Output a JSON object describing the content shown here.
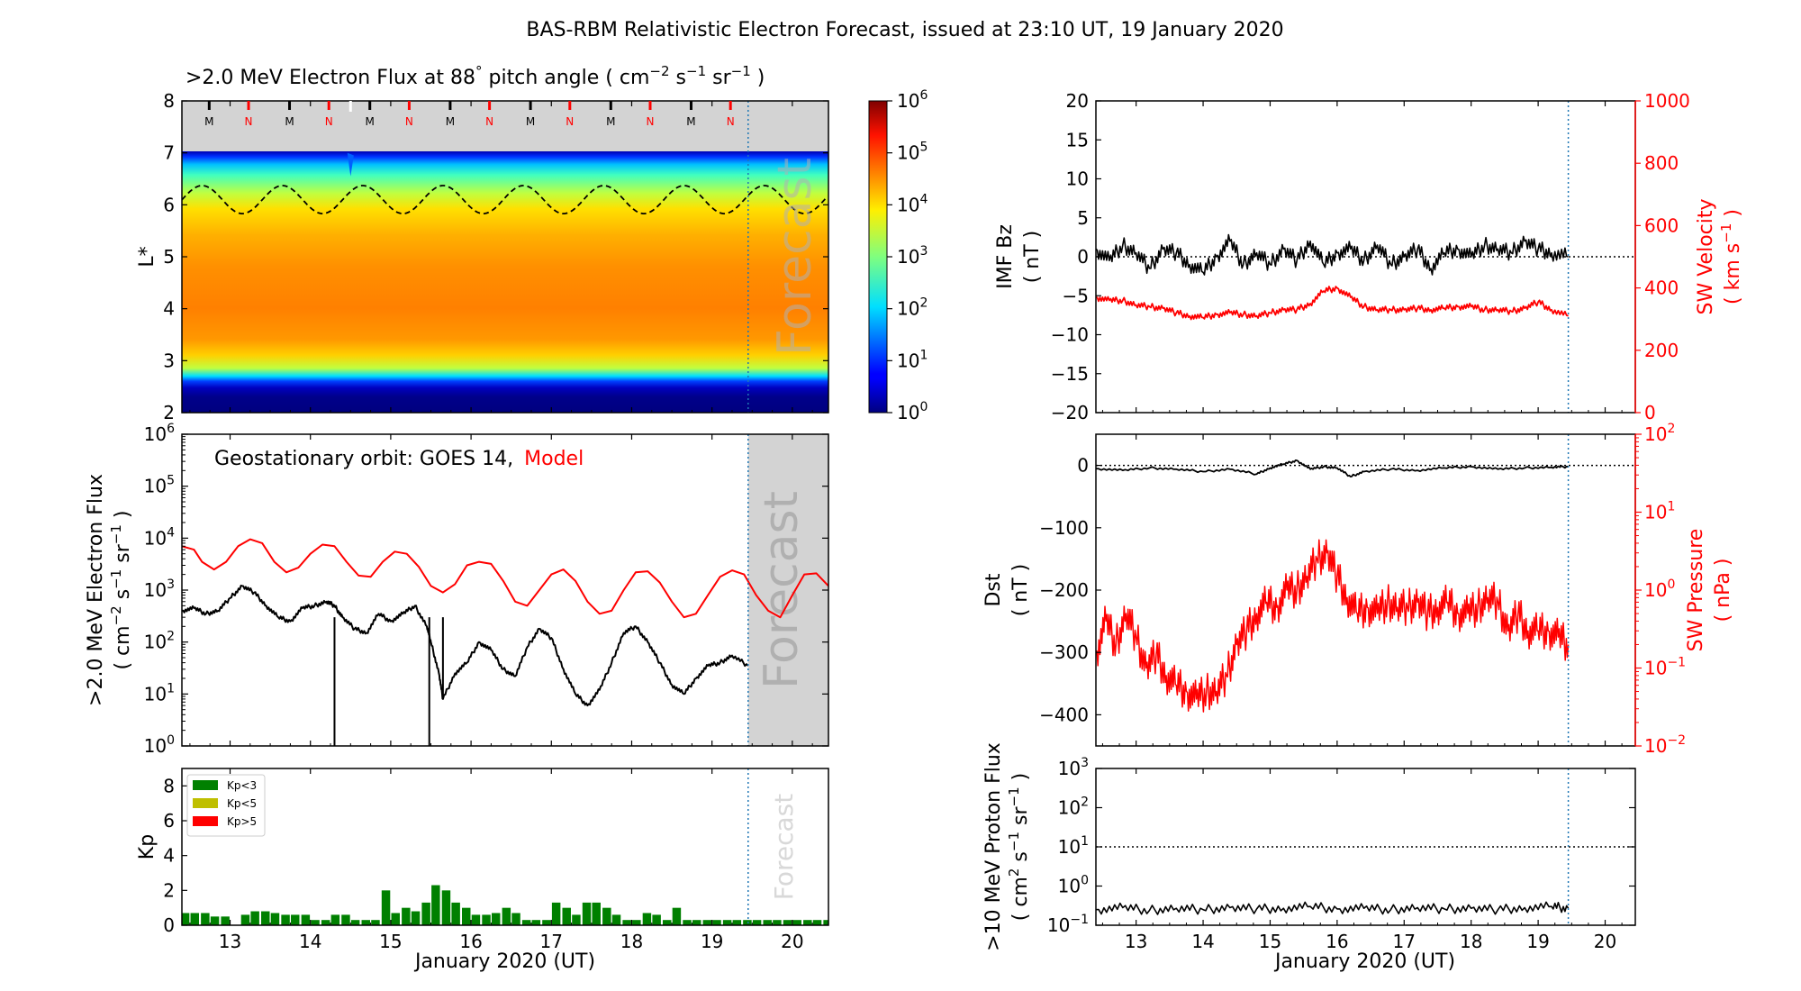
{
  "figure": {
    "title": "BAS-RBM Relativistic Electron Forecast, issued at 23:10 UT, 19 January 2020",
    "forecast_label": "Forecast",
    "xaxis_label": "January 2020 (UT)",
    "xticks": [
      "13",
      "14",
      "15",
      "16",
      "17",
      "18",
      "19",
      "20"
    ],
    "x_range": [
      12.4,
      20.45
    ],
    "forecast_start": 19.45
  },
  "colors": {
    "observed": "#000000",
    "model": "#ff0000",
    "kp_low": "#008000",
    "kp_mid": "#bfbf00",
    "kp_high": "#ff0000",
    "forecast_shade": "#d3d3d3",
    "forecast_line": "#1f77b4"
  },
  "chart_data": [
    {
      "id": "lstar_flux",
      "type": "heatmap",
      "title_parts": [
        ">2.0 MeV Electron Flux at 88",
        "°",
        " pitch angle ( cm",
        "−2",
        " s",
        "−1",
        " sr",
        "−1",
        " )"
      ],
      "ylabel": "L*",
      "ylim": [
        2,
        8
      ],
      "yticks": [
        "2",
        "3",
        "4",
        "5",
        "6",
        "7",
        "8"
      ],
      "colorbar": {
        "min_exp": 0,
        "max_exp": 6,
        "ticks": [
          "10",
          "10",
          "10",
          "10",
          "10",
          "10",
          "10"
        ],
        "tick_exps": [
          "0",
          "1",
          "2",
          "3",
          "4",
          "5",
          "6"
        ],
        "colormap": "jet"
      },
      "orbit_markers": {
        "labels": [
          "M",
          "N",
          "M",
          "N",
          "M",
          "N",
          "M",
          "N",
          "M",
          "N",
          "M",
          "N",
          "M",
          "N"
        ],
        "x": [
          12.74,
          13.23,
          13.74,
          14.23,
          14.74,
          15.23,
          15.74,
          16.23,
          16.74,
          17.23,
          17.74,
          18.23,
          18.74,
          19.23
        ],
        "colors": [
          "#000000",
          "#ff0000",
          "#000000",
          "#ff0000",
          "#000000",
          "#ff0000",
          "#000000",
          "#ff0000",
          "#000000",
          "#ff0000",
          "#000000",
          "#ff0000",
          "#000000",
          "#ff0000"
        ]
      },
      "dashed_contour": {
        "mean_L": 6.1,
        "amplitude": 0.27,
        "period_days": 1.0
      }
    },
    {
      "id": "geo_flux",
      "type": "line",
      "annotation": "Geostationary orbit:   GOES 14,",
      "annotation_model": "Model",
      "ylabel": ">2.0 MeV Electron Flux",
      "ylabel2_parts": [
        "( cm",
        "−2",
        " s",
        "−1",
        " sr",
        "−1",
        " )"
      ],
      "yscale": "log",
      "ylim_exp": [
        0,
        6
      ],
      "ytick_exps": [
        "0",
        "1",
        "2",
        "3",
        "4",
        "5",
        "6"
      ],
      "ytick_base": "10",
      "series": [
        {
          "name": "Model",
          "x": [
            12.4,
            12.55,
            12.65,
            12.8,
            12.95,
            13.1,
            13.25,
            13.4,
            13.55,
            13.7,
            13.85,
            14.0,
            14.15,
            14.3,
            14.45,
            14.6,
            14.75,
            14.9,
            15.05,
            15.2,
            15.35,
            15.5,
            15.65,
            15.8,
            15.95,
            16.1,
            16.25,
            16.4,
            16.55,
            16.7,
            16.85,
            17.0,
            17.15,
            17.3,
            17.45,
            17.6,
            17.75,
            17.9,
            18.05,
            18.2,
            18.35,
            18.5,
            18.65,
            18.8,
            18.95,
            19.1,
            19.25,
            19.4,
            19.55,
            19.7,
            19.85,
            20.0,
            20.15,
            20.3,
            20.45
          ],
          "values": [
            7000,
            6000,
            3500,
            2500,
            3500,
            7000,
            9500,
            8000,
            3500,
            2200,
            2700,
            5000,
            7500,
            7000,
            3500,
            1900,
            1800,
            3500,
            5500,
            5000,
            2800,
            1200,
            900,
            1300,
            3000,
            3500,
            3200,
            1500,
            600,
            500,
            1000,
            2000,
            2500,
            1500,
            600,
            350,
            400,
            1000,
            2200,
            2300,
            1400,
            600,
            300,
            350,
            800,
            1800,
            2400,
            2000,
            800,
            400,
            300,
            800,
            2000,
            2100,
            1200
          ]
        },
        {
          "name": "GOES 14",
          "x": [
            12.4,
            12.55,
            12.7,
            12.85,
            13.0,
            13.15,
            13.3,
            13.45,
            13.6,
            13.75,
            13.9,
            14.05,
            14.2,
            14.3,
            14.4,
            14.55,
            14.7,
            14.85,
            15.0,
            15.15,
            15.3,
            15.45,
            15.5,
            15.6,
            15.65,
            15.8,
            15.95,
            16.1,
            16.25,
            16.4,
            16.55,
            16.7,
            16.85,
            17.0,
            17.15,
            17.3,
            17.45,
            17.6,
            17.75,
            17.9,
            18.05,
            18.2,
            18.35,
            18.5,
            18.65,
            18.8,
            18.95,
            19.1,
            19.25,
            19.45
          ],
          "values": [
            400,
            450,
            350,
            400,
            700,
            1200,
            900,
            500,
            300,
            250,
            450,
            500,
            600,
            500,
            300,
            180,
            150,
            350,
            250,
            350,
            500,
            200,
            100,
            25,
            8,
            25,
            40,
            100,
            70,
            30,
            22,
            80,
            180,
            120,
            30,
            10,
            6,
            12,
            40,
            150,
            200,
            100,
            40,
            15,
            10,
            20,
            35,
            40,
            55,
            35
          ]
        }
      ],
      "dips": {
        "x": [
          14.3,
          15.48,
          15.65
        ],
        "values": [
          1,
          1,
          8
        ]
      }
    },
    {
      "id": "kp",
      "type": "bar",
      "ylabel": "Kp",
      "ylim": [
        0,
        9
      ],
      "yticks": [
        "0",
        "2",
        "4",
        "6",
        "8"
      ],
      "legend": [
        "Kp<3",
        "Kp<5",
        "Kp>5"
      ],
      "legend_position": "top-left",
      "x": [
        12.44,
        12.56,
        12.69,
        12.81,
        12.94,
        13.19,
        13.31,
        13.44,
        13.56,
        13.69,
        13.81,
        13.94,
        14.06,
        14.19,
        14.31,
        14.44,
        14.56,
        14.69,
        14.81,
        14.94,
        15.06,
        15.19,
        15.31,
        15.44,
        15.56,
        15.69,
        15.81,
        15.94,
        16.06,
        16.19,
        16.31,
        16.44,
        16.56,
        16.69,
        16.81,
        16.94,
        17.06,
        17.19,
        17.31,
        17.44,
        17.56,
        17.69,
        17.81,
        17.94,
        18.06,
        18.19,
        18.31,
        18.44,
        18.56,
        18.69,
        18.81,
        18.94,
        19.06,
        19.19,
        19.31,
        19.44,
        19.56,
        19.69,
        19.81,
        19.94,
        20.06,
        20.19,
        20.31,
        20.44
      ],
      "values": [
        0.7,
        0.7,
        0.7,
        0.5,
        0.5,
        0.6,
        0.8,
        0.8,
        0.7,
        0.6,
        0.6,
        0.6,
        0.3,
        0.3,
        0.6,
        0.6,
        0.3,
        0.3,
        0.3,
        2.0,
        0.7,
        1.0,
        0.8,
        1.3,
        2.3,
        2.0,
        1.3,
        1.0,
        0.6,
        0.6,
        0.7,
        1.0,
        0.7,
        0.3,
        0.3,
        0.3,
        1.3,
        1.0,
        0.6,
        1.3,
        1.3,
        1.0,
        0.6,
        0.3,
        0.3,
        0.7,
        0.6,
        0.3,
        1.0,
        0.3,
        0.3,
        0.3,
        0.3,
        0.3,
        0.3,
        0.3,
        0.3,
        0.3,
        0.3,
        0.3,
        0.3,
        0.3,
        0.3,
        0.3
      ]
    },
    {
      "id": "imf_sw",
      "type": "line",
      "ylabel": "IMF Bz",
      "ylabel_unit": "( nT )",
      "ylim": [
        -20,
        20
      ],
      "yticks": [
        "−20",
        "−15",
        "−10",
        "−5",
        "0",
        "5",
        "10",
        "15",
        "20"
      ],
      "ylabel_right": "SW Velocity",
      "ylabel_right_parts": [
        "( km s",
        "−1",
        " )"
      ],
      "ylim_right": [
        0,
        1000
      ],
      "yticks_right": [
        "0",
        "200",
        "400",
        "600",
        "800",
        "1000"
      ],
      "series": [
        {
          "name": "IMF Bz",
          "x": [
            12.4,
            12.6,
            12.8,
            13.0,
            13.2,
            13.4,
            13.6,
            13.8,
            14.0,
            14.2,
            14.4,
            14.6,
            14.8,
            15.0,
            15.2,
            15.4,
            15.6,
            15.8,
            16.0,
            16.2,
            16.4,
            16.6,
            16.8,
            17.0,
            17.2,
            17.4,
            17.6,
            17.8,
            18.0,
            18.2,
            18.4,
            18.6,
            18.8,
            19.0,
            19.2,
            19.45
          ],
          "values": [
            1.0,
            -0.5,
            1.5,
            0.5,
            -1.5,
            1.0,
            0.5,
            -1.0,
            -2.0,
            0.0,
            2.0,
            -1.0,
            0.5,
            -1.0,
            1.0,
            -0.5,
            2.0,
            -1.0,
            0.5,
            1.0,
            -0.5,
            1.5,
            -1.0,
            0.0,
            1.0,
            -1.5,
            0.5,
            1.0,
            0.0,
            1.5,
            1.0,
            0.5,
            2.0,
            1.0,
            0.5,
            0.0
          ]
        },
        {
          "name": "SW Velocity",
          "x": [
            12.4,
            12.6,
            12.8,
            13.0,
            13.2,
            13.4,
            13.6,
            13.8,
            14.0,
            14.2,
            14.4,
            14.6,
            14.8,
            15.0,
            15.2,
            15.4,
            15.6,
            15.8,
            16.0,
            16.2,
            16.4,
            16.6,
            16.8,
            17.0,
            17.2,
            17.4,
            17.6,
            17.8,
            18.0,
            18.2,
            18.4,
            18.6,
            18.8,
            19.0,
            19.2,
            19.45
          ],
          "values": [
            370,
            360,
            360,
            345,
            340,
            335,
            320,
            310,
            305,
            315,
            320,
            315,
            310,
            320,
            330,
            330,
            350,
            390,
            400,
            370,
            340,
            330,
            330,
            330,
            335,
            330,
            335,
            340,
            340,
            330,
            330,
            325,
            335,
            355,
            330,
            310
          ]
        }
      ],
      "zero_line": 0
    },
    {
      "id": "dst_pressure",
      "type": "line",
      "ylabel": "Dst",
      "ylabel_unit": "( nT )",
      "ylim": [
        -450,
        50
      ],
      "yticks": [
        "−400",
        "−300",
        "−200",
        "−100",
        "0"
      ],
      "ylabel_right": "SW Pressure",
      "ylabel_right_unit": "( nPa )",
      "yscale_right": "log",
      "ylim_right_exp": [
        -2,
        2
      ],
      "yticks_right_exp": [
        "−2",
        "−1",
        "0",
        "1",
        "2"
      ],
      "ytick_base": "10",
      "series": [
        {
          "name": "Dst",
          "x": [
            12.4,
            12.8,
            13.2,
            13.6,
            14.0,
            14.4,
            14.8,
            15.0,
            15.2,
            15.4,
            15.6,
            15.8,
            16.0,
            16.2,
            16.4,
            16.8,
            17.2,
            17.6,
            18.0,
            18.4,
            18.8,
            19.2,
            19.45
          ],
          "values": [
            -5,
            -8,
            -4,
            -6,
            -10,
            -6,
            -14,
            -4,
            2,
            8,
            -6,
            -2,
            -4,
            -18,
            -10,
            -6,
            -8,
            -4,
            -2,
            -6,
            -4,
            -3,
            -2
          ]
        },
        {
          "name": "SW Pressure",
          "x": [
            12.4,
            12.55,
            12.7,
            12.85,
            13.0,
            13.15,
            13.3,
            13.45,
            13.6,
            13.75,
            13.9,
            14.05,
            14.2,
            14.35,
            14.5,
            14.65,
            14.8,
            14.95,
            15.1,
            15.25,
            15.4,
            15.55,
            15.7,
            15.85,
            16.0,
            16.15,
            16.3,
            16.45,
            16.6,
            16.75,
            16.9,
            17.05,
            17.2,
            17.35,
            17.5,
            17.65,
            17.8,
            17.95,
            18.1,
            18.25,
            18.4,
            18.55,
            18.7,
            18.85,
            19.0,
            19.15,
            19.3,
            19.45
          ],
          "values": [
            0.15,
            0.4,
            0.2,
            0.5,
            0.25,
            0.1,
            0.15,
            0.08,
            0.06,
            0.05,
            0.04,
            0.05,
            0.05,
            0.08,
            0.2,
            0.3,
            0.5,
            0.7,
            0.6,
            1.0,
            1.0,
            1.5,
            2.5,
            3.0,
            1.5,
            0.8,
            0.5,
            0.6,
            0.5,
            0.7,
            0.6,
            0.6,
            0.7,
            0.5,
            0.6,
            0.7,
            0.5,
            0.5,
            0.6,
            0.8,
            0.7,
            0.3,
            0.5,
            0.3,
            0.3,
            0.3,
            0.25,
            0.2
          ]
        }
      ],
      "zero_line": 0
    },
    {
      "id": "proton_flux",
      "type": "line",
      "ylabel": ">10 MeV Proton Flux",
      "ylabel2_parts": [
        "( cm",
        "2",
        " s",
        "−1",
        " sr",
        "−1",
        " )"
      ],
      "yscale": "log",
      "ylim_exp": [
        -1,
        3
      ],
      "ytick_exps": [
        "−1",
        "0",
        "1",
        "2",
        "3"
      ],
      "ytick_base": "10",
      "threshold": 10,
      "series": [
        {
          "name": "Proton Flux",
          "x": [
            12.4,
            12.8,
            13.2,
            13.6,
            14.0,
            14.4,
            14.8,
            15.2,
            15.6,
            16.0,
            16.4,
            16.8,
            17.2,
            17.6,
            18.0,
            18.4,
            18.8,
            19.2,
            19.45
          ],
          "values": [
            0.25,
            0.28,
            0.24,
            0.27,
            0.25,
            0.28,
            0.26,
            0.27,
            0.3,
            0.26,
            0.27,
            0.25,
            0.28,
            0.26,
            0.27,
            0.25,
            0.28,
            0.3,
            0.27
          ]
        }
      ]
    }
  ]
}
